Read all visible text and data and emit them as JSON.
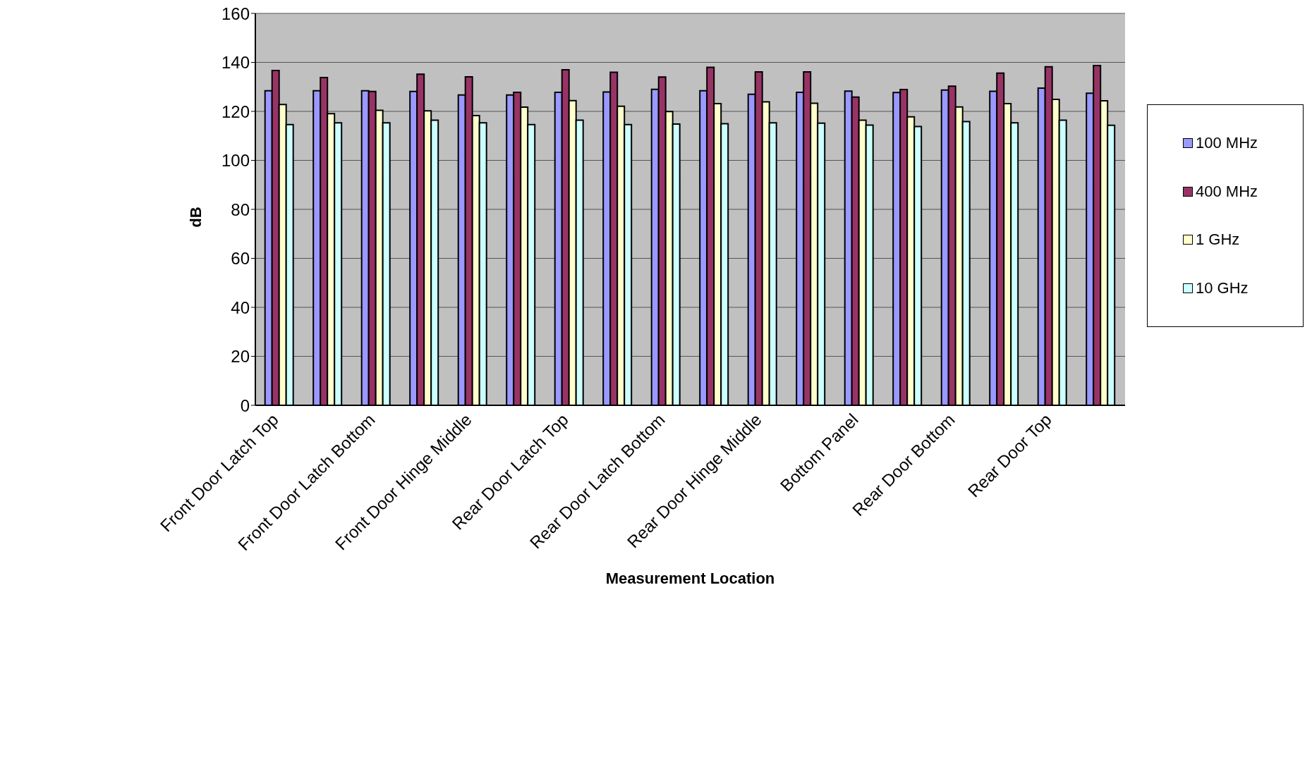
{
  "chart_data": {
    "type": "bar",
    "xlabel": "Measurement Location",
    "ylabel": "dB",
    "categories": [
      "Front Door Latch Top",
      null,
      "Front Door Latch Bottom",
      null,
      "Front Door Hinge Middle",
      null,
      "Rear Door Latch Top",
      null,
      "Rear Door Latch Bottom",
      null,
      "Rear Door Hinge Middle",
      null,
      "Bottom Panel",
      null,
      "Rear Door Bottom",
      null,
      "Rear Door Top",
      null
    ],
    "series": [
      {
        "name": "100 MHz",
        "color": "#9999ff",
        "values": [
          128.4,
          128.4,
          128.4,
          128.1,
          126.7,
          126.7,
          127.8,
          127.9,
          129.0,
          128.4,
          127.0,
          127.8,
          128.3,
          127.7,
          128.7,
          128.2,
          129.5,
          127.4
        ]
      },
      {
        "name": "400 MHz",
        "color": "#993366",
        "values": [
          136.7,
          133.8,
          128.1,
          135.2,
          134.1,
          127.8,
          137.0,
          136.0,
          134.0,
          138.0,
          136.1,
          136.1,
          125.8,
          128.9,
          130.3,
          135.6,
          138.2,
          138.7
        ]
      },
      {
        "name": "1 GHz",
        "color": "#ffffcc",
        "values": [
          122.8,
          119.1,
          120.4,
          120.2,
          118.3,
          121.7,
          124.4,
          122.1,
          119.9,
          123.2,
          123.9,
          123.3,
          116.4,
          117.8,
          121.8,
          123.2,
          124.9,
          124.3
        ]
      },
      {
        "name": "10 GHz",
        "color": "#ccffff",
        "values": [
          114.6,
          115.3,
          115.3,
          116.4,
          115.3,
          114.6,
          116.4,
          114.6,
          114.8,
          115.0,
          115.3,
          115.2,
          114.4,
          113.8,
          115.8,
          115.3,
          116.4,
          114.3
        ]
      }
    ],
    "ylim": [
      0,
      160
    ],
    "yticks": [
      0,
      20,
      40,
      60,
      80,
      100,
      120,
      140,
      160
    ],
    "grid": "y",
    "legend": "right"
  }
}
